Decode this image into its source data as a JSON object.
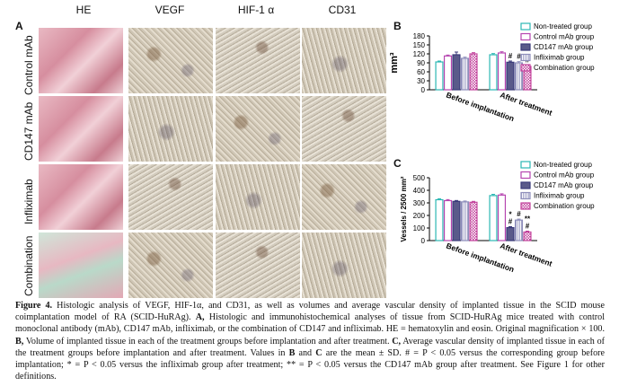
{
  "figure": {
    "panel_a": "A",
    "panel_b": "B",
    "panel_c": "C",
    "columns": [
      "HE",
      "VEGF",
      "HIF-1 α",
      "CD31"
    ],
    "rows": [
      "Control mAb",
      "CD147 mAb",
      "Infliximab",
      "Combination"
    ]
  },
  "chart_data": [
    {
      "type": "bar",
      "panel": "B",
      "categories": [
        "Before implantation",
        "After treatment"
      ],
      "ylabel": "mm³",
      "ylim": [
        0,
        180
      ],
      "yticks": [
        0,
        30,
        60,
        90,
        120,
        150,
        180
      ],
      "legend_position": "top-right",
      "series": [
        {
          "name": "Non-treated group",
          "values": [
            93,
            117
          ],
          "errors": [
            3,
            4
          ],
          "color": "#2bb7b3",
          "marks": [
            "",
            ""
          ]
        },
        {
          "name": "Control mAb group",
          "values": [
            113,
            123
          ],
          "errors": [
            3,
            4
          ],
          "color": "#b645b0",
          "marks": [
            "",
            ""
          ]
        },
        {
          "name": "CD147 mAb group",
          "values": [
            117,
            92
          ],
          "errors": [
            9,
            4
          ],
          "color": "#3a3a7a",
          "marks": [
            "",
            "#"
          ]
        },
        {
          "name": "Infliximab group",
          "values": [
            105,
            90
          ],
          "errors": [
            4,
            4
          ],
          "color": "#8e8ebb",
          "marks": [
            "",
            "#"
          ]
        },
        {
          "name": "Combination group",
          "values": [
            120,
            78
          ],
          "errors": [
            4,
            4
          ],
          "color": "#c2419b",
          "marks": [
            "",
            "#"
          ]
        }
      ]
    },
    {
      "type": "bar",
      "panel": "C",
      "categories": [
        "Before implantation",
        "After treatment"
      ],
      "ylabel": "Vessels / 2500 mm²",
      "ylim": [
        0,
        500
      ],
      "yticks": [
        0,
        100,
        200,
        300,
        400,
        500
      ],
      "legend_position": "top-right",
      "series": [
        {
          "name": "Non-treated group",
          "values": [
            325,
            358
          ],
          "errors": [
            8,
            10
          ],
          "color": "#2bb7b3",
          "marks": [
            "",
            ""
          ]
        },
        {
          "name": "Control mAb group",
          "values": [
            318,
            362
          ],
          "errors": [
            8,
            10
          ],
          "color": "#b645b0",
          "marks": [
            "",
            ""
          ]
        },
        {
          "name": "CD147 mAb group",
          "values": [
            312,
            103
          ],
          "errors": [
            7,
            8
          ],
          "color": "#3a3a7a",
          "marks": [
            "",
            "*\n#"
          ]
        },
        {
          "name": "Infliximab group",
          "values": [
            308,
            163
          ],
          "errors": [
            7,
            8
          ],
          "color": "#8e8ebb",
          "marks": [
            "",
            "#"
          ]
        },
        {
          "name": "Combination group",
          "values": [
            305,
            68
          ],
          "errors": [
            7,
            7
          ],
          "color": "#c2419b",
          "marks": [
            "",
            "**\n#"
          ]
        }
      ]
    }
  ],
  "caption": {
    "label": "Figure 4.",
    "text1": " Histologic analysis of VEGF, HIF-1α, and CD31, as well as volumes and average vascular density of implanted tissue in the SCID mouse coimplantation model of RA (SCID-HuRAg). ",
    "a_label": "A,",
    "text2": " Histologic and immunohistochemical analyses of tissue from SCID-HuRAg mice treated with control monoclonal antibody (mAb), CD147 mAb, infliximab, or the combination of CD147 and infliximab. HE = hematoxylin and eosin. Original magnification × 100. ",
    "b_label": "B,",
    "text3": " Volume of implanted tissue in each of the treatment groups before implantation and after treatment. ",
    "c_label": "C,",
    "text4": " Average vascular density of implanted tissue in each of the treatment groups before implantation and after treatment. Values in ",
    "b_ref": "B",
    "text5": " and ",
    "c_ref": "C",
    "text6": " are the mean ± SD. # = P < 0.05 versus the corresponding group before implantation; * = P < 0.05 versus the infliximab group after treatment; ** = P < 0.05 versus the CD147 mAb group after treatment. See Figure 1 for other definitions."
  }
}
